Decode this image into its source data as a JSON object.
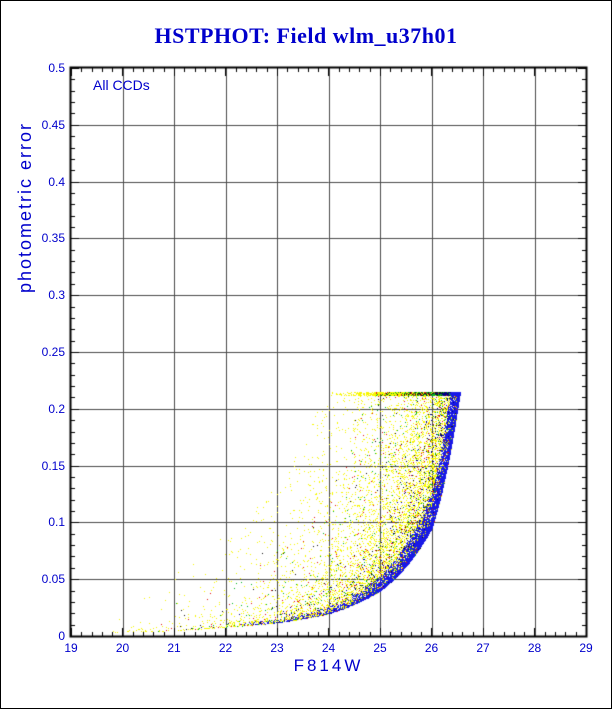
{
  "window_title": "HSTPHOT: Field wlm_u37h01",
  "colors": {
    "text_blue": "#0000cc",
    "frame": "#000000",
    "grid": "#4a4a4a",
    "background": "#ffffff"
  },
  "chart_data": {
    "type": "scatter",
    "title": "HSTPHOT: Field wlm_u37h01",
    "annotation": "All CCDs",
    "xlabel": "F814W",
    "ylabel": "photometric error",
    "xlim": [
      19,
      29
    ],
    "ylim": [
      0,
      0.5
    ],
    "grid": true,
    "legend": "none",
    "x_tick_values": [
      19,
      20,
      21,
      22,
      23,
      24,
      25,
      26,
      27,
      28,
      29
    ],
    "x_tick_labels": [
      "19",
      "20",
      "21",
      "22",
      "23",
      "24",
      "25",
      "26",
      "27",
      "28",
      "29"
    ],
    "y_tick_values": [
      0,
      0.05,
      0.1,
      0.15,
      0.2,
      0.25,
      0.3,
      0.35,
      0.4,
      0.45,
      0.5
    ],
    "y_tick_labels": [
      "0",
      "0.05",
      "0.1",
      "0.15",
      "0.2",
      "0.25",
      "0.3",
      "0.35",
      "0.4",
      "0.45",
      "0.5"
    ],
    "x_minor_step": 0.2,
    "y_minor_step": 0.01,
    "error_cap": 0.215,
    "mag_faint_limit": 26.55,
    "envelope_mag_err": [
      [
        19.8,
        0.0032
      ],
      [
        21.0,
        0.005
      ],
      [
        22.0,
        0.008
      ],
      [
        23.0,
        0.012
      ],
      [
        24.0,
        0.02
      ],
      [
        25.0,
        0.04
      ],
      [
        26.0,
        0.095
      ],
      [
        26.5,
        0.2
      ],
      [
        26.62,
        0.235
      ]
    ],
    "series": [
      {
        "name": "ccd-yellow",
        "color": "#f7f700",
        "count": 15000,
        "mag_min": 19.8,
        "mag_max": 26.55,
        "faint_bias": 0.42,
        "spread_dex": 1.05
      },
      {
        "name": "ccd-red",
        "color": "#e01414",
        "count": 1000,
        "mag_min": 20.5,
        "mag_max": 26.55,
        "faint_bias": 0.42,
        "spread_dex": 0.8
      },
      {
        "name": "ccd-green",
        "color": "#00b41e",
        "count": 1000,
        "mag_min": 20.5,
        "mag_max": 26.55,
        "faint_bias": 0.42,
        "spread_dex": 0.8
      },
      {
        "name": "ccd-black",
        "color": "#141414",
        "count": 420,
        "mag_min": 21.0,
        "mag_max": 26.55,
        "faint_bias": 0.4,
        "spread_dex": 0.9
      },
      {
        "name": "ccd-navy",
        "color": "#000082",
        "count": 700,
        "mag_min": 21.5,
        "mag_max": 26.55,
        "faint_bias": 0.5,
        "spread_dex": 0.35
      },
      {
        "name": "ccd-blue",
        "color": "#1919e6",
        "count": 5200,
        "mag_min": 22.3,
        "mag_max": 26.55,
        "faint_bias": 0.55,
        "spread_dex": 0.12
      }
    ],
    "seed": 42
  }
}
